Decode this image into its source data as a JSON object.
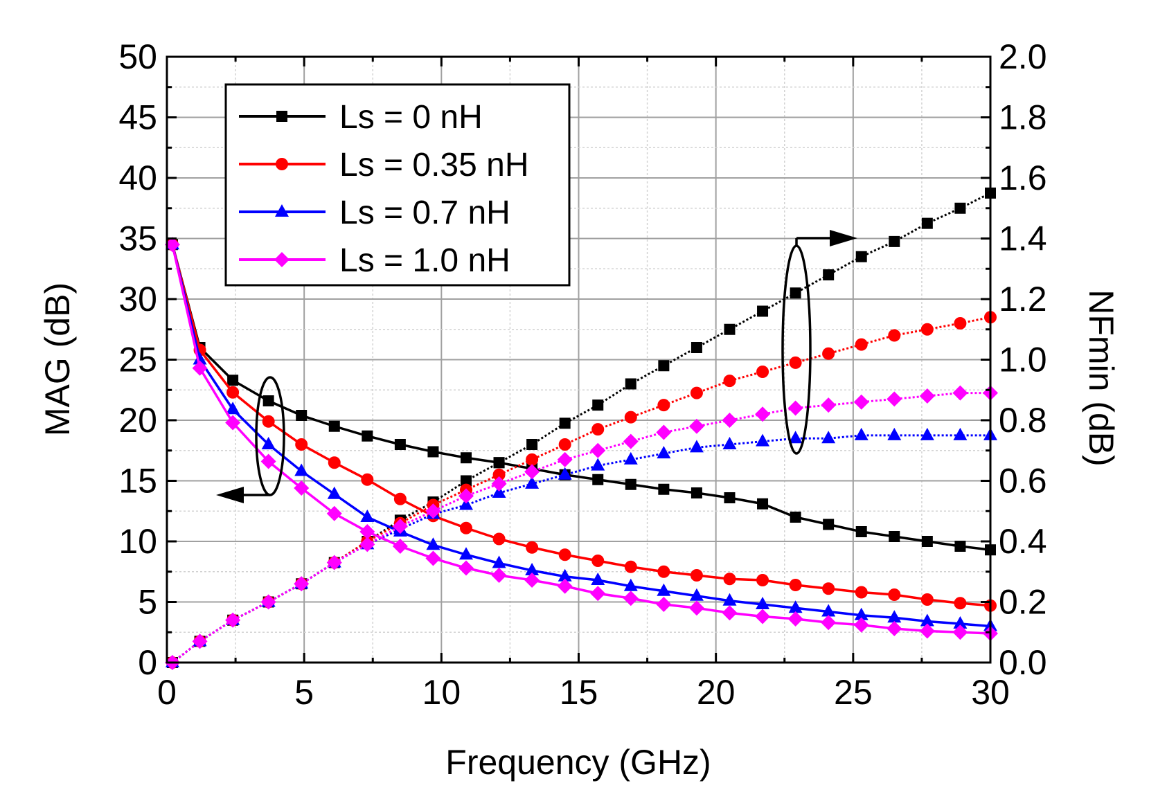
{
  "chart_data": {
    "type": "line",
    "title": "",
    "xlabel": "Frequency (GHz)",
    "ylabel_left": "MAG (dB)",
    "ylabel_right": "NFmin (dB)",
    "xlim": [
      0,
      30
    ],
    "ylim_left": [
      0,
      50
    ],
    "ylim_right": [
      0,
      2.0
    ],
    "x_ticks": [
      "0",
      "5",
      "10",
      "15",
      "20",
      "25",
      "30"
    ],
    "y_left_ticks": [
      "0",
      "5",
      "10",
      "15",
      "20",
      "25",
      "30",
      "35",
      "40",
      "45",
      "50"
    ],
    "y_right_ticks": [
      "0.0",
      "0.2",
      "0.4",
      "0.6",
      "0.8",
      "1.0",
      "1.2",
      "1.4",
      "1.6",
      "1.8",
      "2.0"
    ],
    "grid": true,
    "legend_position": "top-left",
    "x": [
      0.2,
      1.2,
      2.4,
      3.7,
      4.9,
      6.1,
      7.3,
      8.5,
      9.7,
      10.9,
      12.1,
      13.3,
      14.5,
      15.7,
      16.9,
      18.1,
      19.3,
      20.5,
      21.7,
      22.9,
      24.1,
      25.3,
      26.5,
      27.7,
      28.9,
      30.0
    ],
    "series": [
      {
        "name": "Ls = 0 nH",
        "color": "#000000",
        "marker": "square",
        "mag": [
          34.5,
          26.0,
          23.3,
          21.6,
          20.4,
          19.5,
          18.7,
          18.0,
          17.4,
          16.9,
          16.5,
          16.0,
          15.5,
          15.1,
          14.7,
          14.3,
          14.0,
          13.6,
          13.1,
          12.0,
          11.4,
          10.8,
          10.4,
          10.0,
          9.6,
          9.3
        ],
        "nfmin": [
          0.0,
          0.07,
          0.14,
          0.2,
          0.26,
          0.33,
          0.4,
          0.47,
          0.53,
          0.6,
          0.66,
          0.72,
          0.79,
          0.85,
          0.92,
          0.98,
          1.04,
          1.1,
          1.16,
          1.22,
          1.28,
          1.34,
          1.39,
          1.45,
          1.5,
          1.55
        ]
      },
      {
        "name": "Ls = 0.35 nH",
        "color": "#ff0000",
        "marker": "circle",
        "mag": [
          34.5,
          25.8,
          22.3,
          19.9,
          18.0,
          16.5,
          15.1,
          13.5,
          12.1,
          11.1,
          10.2,
          9.5,
          8.9,
          8.4,
          7.9,
          7.5,
          7.2,
          6.9,
          6.8,
          6.4,
          6.1,
          5.8,
          5.6,
          5.2,
          4.9,
          4.7
        ],
        "nfmin": [
          0.0,
          0.07,
          0.14,
          0.2,
          0.26,
          0.33,
          0.4,
          0.46,
          0.52,
          0.57,
          0.62,
          0.67,
          0.72,
          0.77,
          0.81,
          0.85,
          0.89,
          0.93,
          0.96,
          0.99,
          1.02,
          1.05,
          1.08,
          1.1,
          1.12,
          1.14
        ]
      },
      {
        "name": "Ls = 0.7 nH",
        "color": "#0000ff",
        "marker": "triangle",
        "mag": [
          34.5,
          25.0,
          20.9,
          18.0,
          15.8,
          13.9,
          12.0,
          10.8,
          9.7,
          8.9,
          8.2,
          7.6,
          7.1,
          6.8,
          6.3,
          5.9,
          5.5,
          5.1,
          4.8,
          4.5,
          4.2,
          3.9,
          3.7,
          3.4,
          3.2,
          3.0
        ],
        "nfmin": [
          0.0,
          0.07,
          0.14,
          0.2,
          0.26,
          0.33,
          0.39,
          0.44,
          0.49,
          0.52,
          0.56,
          0.59,
          0.62,
          0.65,
          0.67,
          0.69,
          0.71,
          0.72,
          0.73,
          0.74,
          0.74,
          0.75,
          0.75,
          0.75,
          0.75,
          0.75
        ]
      },
      {
        "name": "Ls = 1.0 nH",
        "color": "#ff00ff",
        "marker": "diamond",
        "mag": [
          34.5,
          24.3,
          19.8,
          16.6,
          14.4,
          12.3,
          10.8,
          9.6,
          8.6,
          7.8,
          7.2,
          6.8,
          6.3,
          5.7,
          5.3,
          4.8,
          4.5,
          4.1,
          3.8,
          3.6,
          3.3,
          3.1,
          2.8,
          2.6,
          2.5,
          2.4
        ],
        "nfmin": [
          0.0,
          0.07,
          0.14,
          0.2,
          0.26,
          0.33,
          0.39,
          0.45,
          0.5,
          0.55,
          0.59,
          0.63,
          0.67,
          0.7,
          0.73,
          0.76,
          0.78,
          0.8,
          0.82,
          0.84,
          0.85,
          0.86,
          0.87,
          0.88,
          0.89,
          0.89
        ]
      }
    ]
  }
}
